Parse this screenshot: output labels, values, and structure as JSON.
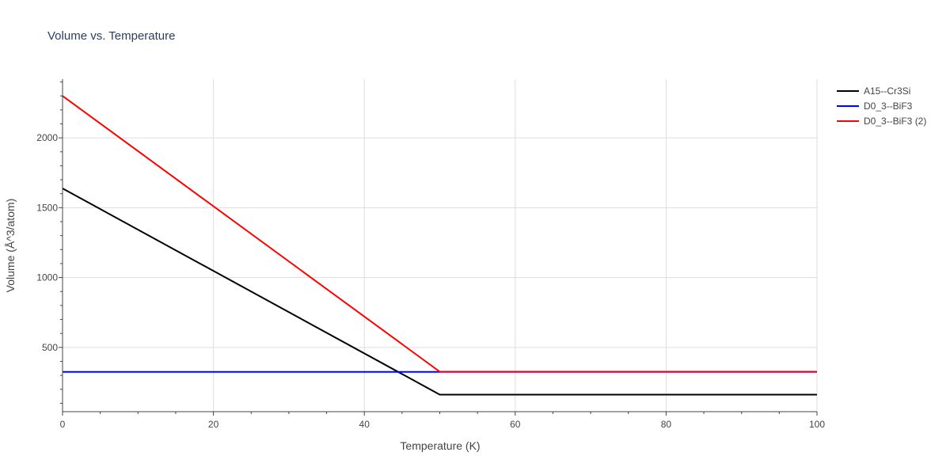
{
  "chart_data": {
    "type": "line",
    "title": "Volume vs. Temperature",
    "xlabel": "Temperature (K)",
    "ylabel": "Volume (Å^3/atom)",
    "xlim": [
      0,
      100
    ],
    "ylim": [
      40,
      2420
    ],
    "x_ticks": [
      0,
      20,
      40,
      60,
      80,
      100
    ],
    "y_ticks": [
      500,
      1000,
      1500,
      2000
    ],
    "grid": true,
    "legend_position": "top-right",
    "series": [
      {
        "name": "A15--Cr3Si",
        "color": "#000000",
        "x": [
          0,
          50,
          100
        ],
        "y": [
          1638,
          162,
          162
        ]
      },
      {
        "name": "D0_3--BiF3",
        "color": "#0000ff",
        "x": [
          0,
          100
        ],
        "y": [
          325,
          325
        ]
      },
      {
        "name": "D0_3--BiF3 (2)",
        "color": "#ff0000",
        "x": [
          0,
          50,
          100
        ],
        "y": [
          2300,
          326,
          326
        ]
      }
    ]
  }
}
